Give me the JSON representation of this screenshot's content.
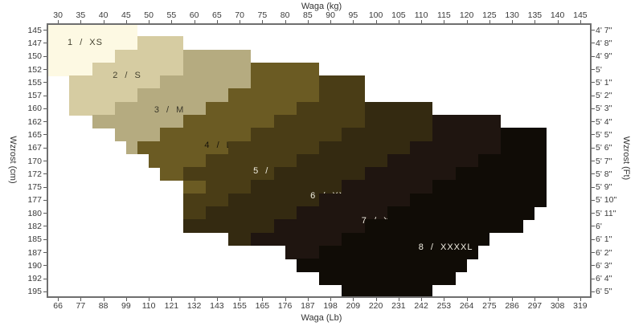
{
  "chart_data": {
    "type": "heatmap",
    "subtype": "stepped-size-band-chart",
    "x_top": {
      "label": "Waga  (kg)",
      "range": [
        27.5,
        147.5
      ],
      "ticks": [
        30,
        35,
        40,
        45,
        50,
        55,
        60,
        65,
        70,
        75,
        80,
        85,
        90,
        95,
        100,
        105,
        110,
        115,
        120,
        125,
        130,
        135,
        140,
        145
      ]
    },
    "x_bottom": {
      "label": "Waga  (Lb)",
      "ticks": [
        66,
        77,
        88,
        99,
        110,
        121,
        132,
        143,
        155,
        165,
        176,
        187,
        198,
        209,
        220,
        231,
        242,
        253,
        264,
        275,
        286,
        297,
        308,
        319
      ]
    },
    "y_left": {
      "label": "Wzrost  (cm)",
      "ticks": [
        145,
        147,
        150,
        152,
        155,
        157,
        160,
        162,
        165,
        167,
        170,
        172,
        175,
        177,
        180,
        182,
        185,
        187,
        190,
        192,
        195
      ]
    },
    "y_right": {
      "label": "Wzrost  (Ft)",
      "ticks": [
        "4' 7\"",
        "4' 8\"",
        "4' 9\"",
        "5'",
        "5' 1\"",
        "5' 2\"",
        "5' 3\"",
        "5' 4\"",
        "5' 5\"",
        "5' 6\"",
        "5' 7\"",
        "5' 8\"",
        "5' 9\"",
        "5' 10\"",
        "5' 11\"",
        "6'",
        "6' 1\"",
        "6' 2\"",
        "6' 3\"",
        "6' 4\"",
        "6' 5\""
      ]
    },
    "grid": false,
    "frame_color": "#6e6e6e",
    "bands": [
      {
        "id": "xs",
        "label": "1 / XS",
        "color": "#fdf9e3",
        "text_color": "#45422f",
        "label_kg": 36,
        "label_row": 1.45,
        "rows": [
          {
            "r": 0,
            "a": 27.5,
            "b": 47.5
          },
          {
            "r": 1,
            "a": 27.5,
            "b": 47.5
          },
          {
            "r": 2,
            "a": 27.5,
            "b": 42.5
          },
          {
            "r": 3,
            "a": 27.5,
            "b": 37.5
          }
        ]
      },
      {
        "id": "s",
        "label": "2 / S",
        "color": "#d6cca2",
        "text_color": "#45422f",
        "label_kg": 45.2,
        "label_row": 4.0,
        "rows": [
          {
            "r": 1,
            "a": 47.5,
            "b": 57.5
          },
          {
            "r": 2,
            "a": 42.5,
            "b": 57.5
          },
          {
            "r": 3,
            "a": 37.5,
            "b": 57.5
          },
          {
            "r": 4,
            "a": 32.5,
            "b": 52.5
          },
          {
            "r": 5,
            "a": 32.5,
            "b": 47.5
          },
          {
            "r": 6,
            "a": 32.5,
            "b": 42.5
          }
        ]
      },
      {
        "id": "m",
        "label": "3 / M",
        "color": "#b5ab80",
        "text_color": "#3b382a",
        "label_kg": 54.5,
        "label_row": 6.65,
        "rows": [
          {
            "r": 2,
            "a": 57.5,
            "b": 72.5
          },
          {
            "r": 3,
            "a": 57.5,
            "b": 72.5
          },
          {
            "r": 4,
            "a": 52.5,
            "b": 72.5
          },
          {
            "r": 5,
            "a": 47.5,
            "b": 67.5
          },
          {
            "r": 6,
            "a": 42.5,
            "b": 62.5
          },
          {
            "r": 7,
            "a": 37.5,
            "b": 57.5
          },
          {
            "r": 8,
            "a": 42.5,
            "b": 52.5
          },
          {
            "r": 9,
            "a": 45,
            "b": 47.5
          }
        ]
      },
      {
        "id": "l",
        "label": "4 / L",
        "color": "#6b5b23",
        "text_color": "#17130a",
        "label_kg": 65.3,
        "label_row": 9.3,
        "rows": [
          {
            "r": 3,
            "a": 72.5,
            "b": 87.5
          },
          {
            "r": 4,
            "a": 72.5,
            "b": 87.5
          },
          {
            "r": 5,
            "a": 67.5,
            "b": 87.5
          },
          {
            "r": 6,
            "a": 62.5,
            "b": 82.5
          },
          {
            "r": 7,
            "a": 57.5,
            "b": 77.5
          },
          {
            "r": 8,
            "a": 52.5,
            "b": 72.5
          },
          {
            "r": 9,
            "a": 47.5,
            "b": 67.5
          },
          {
            "r": 10,
            "a": 50,
            "b": 62.5
          },
          {
            "r": 11,
            "a": 52.5,
            "b": 57.5
          },
          {
            "r": 12,
            "a": 57.5,
            "b": 62.5
          }
        ]
      },
      {
        "id": "xl",
        "label": "5 / XL",
        "color": "#4a3d16",
        "text_color": "#f2efe3",
        "label_kg": 76.8,
        "label_row": 11.3,
        "rows": [
          {
            "r": 4,
            "a": 87.5,
            "b": 97.5
          },
          {
            "r": 5,
            "a": 87.5,
            "b": 97.5
          },
          {
            "r": 6,
            "a": 82.5,
            "b": 97.5
          },
          {
            "r": 7,
            "a": 77.5,
            "b": 97.5
          },
          {
            "r": 8,
            "a": 72.5,
            "b": 92.5
          },
          {
            "r": 9,
            "a": 67.5,
            "b": 87.5
          },
          {
            "r": 10,
            "a": 62.5,
            "b": 82.5
          },
          {
            "r": 11,
            "a": 57.5,
            "b": 77.5
          },
          {
            "r": 12,
            "a": 62.5,
            "b": 72.5
          },
          {
            "r": 13,
            "a": 57.5,
            "b": 67.5
          },
          {
            "r": 14,
            "a": 57.5,
            "b": 62.5
          }
        ]
      },
      {
        "id": "xxl",
        "label": "6 / XXL",
        "color": "#342a11",
        "text_color": "#f2efe3",
        "label_kg": 90.1,
        "label_row": 13.2,
        "rows": [
          {
            "r": 6,
            "a": 97.5,
            "b": 112.5
          },
          {
            "r": 7,
            "a": 97.5,
            "b": 112.5
          },
          {
            "r": 8,
            "a": 92.5,
            "b": 112.5
          },
          {
            "r": 9,
            "a": 87.5,
            "b": 107.5
          },
          {
            "r": 10,
            "a": 82.5,
            "b": 102.5
          },
          {
            "r": 11,
            "a": 77.5,
            "b": 97.5
          },
          {
            "r": 12,
            "a": 72.5,
            "b": 92.5
          },
          {
            "r": 13,
            "a": 67.5,
            "b": 87.5
          },
          {
            "r": 14,
            "a": 62.5,
            "b": 82.5
          },
          {
            "r": 15,
            "a": 57.5,
            "b": 77.5
          },
          {
            "r": 16,
            "a": 67.5,
            "b": 72.5
          }
        ]
      },
      {
        "id": "xxxl",
        "label": "7 / XXXL",
        "color": "#1f1510",
        "text_color": "#f2efe3",
        "label_kg": 102.1,
        "label_row": 15.1,
        "rows": [
          {
            "r": 7,
            "a": 112.5,
            "b": 127.5
          },
          {
            "r": 8,
            "a": 112.5,
            "b": 127.5
          },
          {
            "r": 9,
            "a": 107.5,
            "b": 127.5
          },
          {
            "r": 10,
            "a": 102.5,
            "b": 122.5
          },
          {
            "r": 11,
            "a": 97.5,
            "b": 117.5
          },
          {
            "r": 12,
            "a": 92.5,
            "b": 112.5
          },
          {
            "r": 13,
            "a": 87.5,
            "b": 107.5
          },
          {
            "r": 14,
            "a": 82.5,
            "b": 102.5
          },
          {
            "r": 15,
            "a": 77.5,
            "b": 97.5
          },
          {
            "r": 16,
            "a": 72.5,
            "b": 92.5
          },
          {
            "r": 17,
            "a": 80,
            "b": 87.5
          }
        ]
      },
      {
        "id": "xxxxl",
        "label": "8 / XXXXL",
        "color": "#100c06",
        "text_color": "#f2efe3",
        "label_kg": 115.4,
        "label_row": 17.15,
        "rows": [
          {
            "r": 8,
            "a": 127.5,
            "b": 137.5
          },
          {
            "r": 9,
            "a": 127.5,
            "b": 137.5
          },
          {
            "r": 10,
            "a": 122.5,
            "b": 137.5
          },
          {
            "r": 11,
            "a": 117.5,
            "b": 137.5
          },
          {
            "r": 12,
            "a": 112.5,
            "b": 137.5
          },
          {
            "r": 13,
            "a": 107.5,
            "b": 137.5
          },
          {
            "r": 14,
            "a": 102.5,
            "b": 135
          },
          {
            "r": 15,
            "a": 97.5,
            "b": 132.5
          },
          {
            "r": 16,
            "a": 92.5,
            "b": 125
          },
          {
            "r": 17,
            "a": 87.5,
            "b": 122.5
          },
          {
            "r": 18,
            "a": 82.5,
            "b": 120
          },
          {
            "r": 19,
            "a": 87.5,
            "b": 117.5
          },
          {
            "r": 20,
            "a": 92.5,
            "b": 112.5
          }
        ]
      }
    ]
  }
}
